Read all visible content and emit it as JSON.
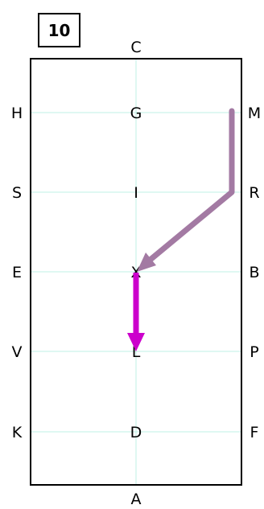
{
  "badge": {
    "number": "10"
  },
  "letters": {
    "top": "C",
    "bottom": "A",
    "left": [
      "H",
      "S",
      "E",
      "V",
      "K"
    ],
    "center": [
      "G",
      "I",
      "X",
      "L",
      "D"
    ],
    "right": [
      "M",
      "R",
      "B",
      "P",
      "F"
    ]
  },
  "colors": {
    "path_1": "#a37aa3",
    "path_2": "#cc00cc",
    "grid": "#bff0e6",
    "border": "#000000"
  }
}
